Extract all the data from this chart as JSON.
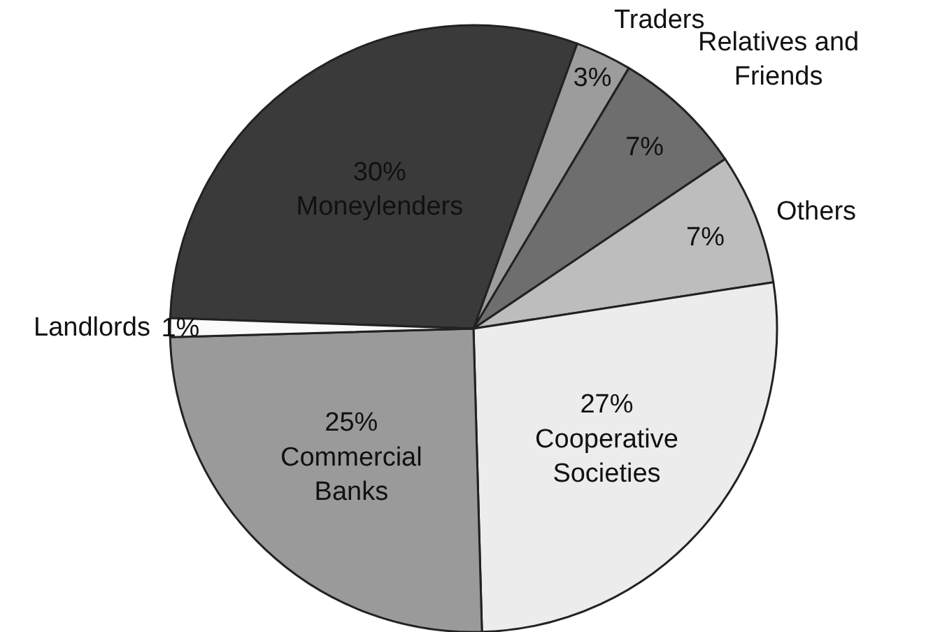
{
  "chart_data": {
    "type": "pie",
    "categories": [
      "Moneylenders",
      "Traders",
      "Relatives and Friends",
      "Others",
      "Cooperative Societies",
      "Commercial Banks",
      "Landlords"
    ],
    "values": [
      30,
      3,
      7,
      7,
      27,
      25,
      1
    ],
    "value_labels": [
      "30%",
      "3%",
      "7%",
      "7%",
      "27%",
      "25%",
      "1%"
    ],
    "colors": [
      "#3a3a3a",
      "#9c9c9c",
      "#6e6e6e",
      "#bdbdbd",
      "#ececec",
      "#9a9a9a",
      "#fafafa"
    ],
    "legend": false
  }
}
